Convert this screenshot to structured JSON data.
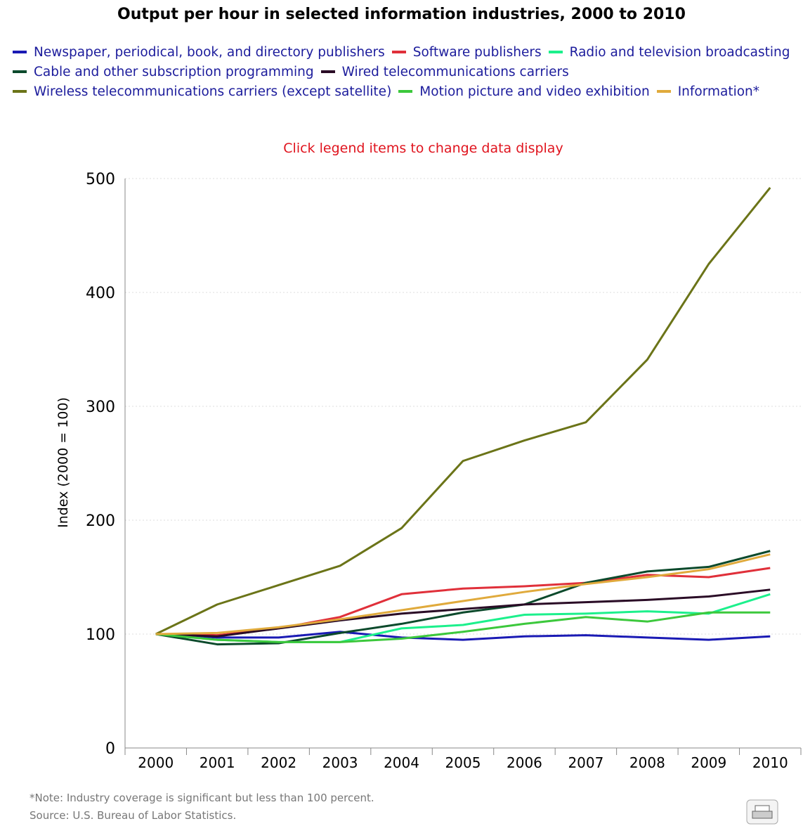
{
  "chart_data": {
    "type": "line",
    "title": "Output per hour in selected information industries, 2000 to 2010",
    "subtitle": "Click legend items to change data display",
    "y_label": "Index (2000 = 100)",
    "note": "*Note: Industry coverage is significant but less than 100 percent.",
    "source": "Source: U.S. Bureau of Labor Statistics.",
    "categories": [
      "2000",
      "2001",
      "2002",
      "2003",
      "2004",
      "2005",
      "2006",
      "2007",
      "2008",
      "2009",
      "2010"
    ],
    "ylim": [
      0,
      500
    ],
    "yticks": [
      0,
      100,
      200,
      300,
      400,
      500
    ],
    "grid": true,
    "series": [
      {
        "name": "Newspaper, periodical, book, and directory publishers",
        "color": "#1a1ab4",
        "values": [
          100,
          97,
          97,
          102,
          97,
          95,
          98,
          99,
          97,
          95,
          98
        ]
      },
      {
        "name": "Software publishers",
        "color": "#e0303a",
        "values": [
          100,
          99,
          105,
          115,
          135,
          140,
          142,
          145,
          152,
          150,
          158
        ]
      },
      {
        "name": "Radio and television broadcasting",
        "color": "#1cf08c",
        "values": [
          100,
          95,
          93,
          93,
          105,
          108,
          117,
          118,
          120,
          118,
          135
        ]
      },
      {
        "name": "Cable and other subscription programming",
        "color": "#0c4a2c",
        "values": [
          100,
          91,
          92,
          101,
          109,
          119,
          126,
          145,
          155,
          159,
          173
        ]
      },
      {
        "name": "Wired telecommunications carriers",
        "color": "#2a0c26",
        "values": [
          100,
          98,
          105,
          112,
          118,
          122,
          126,
          128,
          130,
          133,
          139
        ]
      },
      {
        "name": "Wireless telecommunications carriers (except satellite)",
        "color": "#6b7418",
        "values": [
          100,
          126,
          143,
          160,
          193,
          252,
          270,
          286,
          341,
          425,
          492
        ]
      },
      {
        "name": "Motion picture and video exhibition",
        "color": "#3cc83c",
        "values": [
          100,
          95,
          93,
          93,
          96,
          102,
          109,
          115,
          111,
          119,
          119
        ]
      },
      {
        "name": "Information*",
        "color": "#e0aa3c",
        "values": [
          100,
          101,
          106,
          113,
          121,
          129,
          137,
          144,
          150,
          157,
          170
        ]
      }
    ]
  }
}
